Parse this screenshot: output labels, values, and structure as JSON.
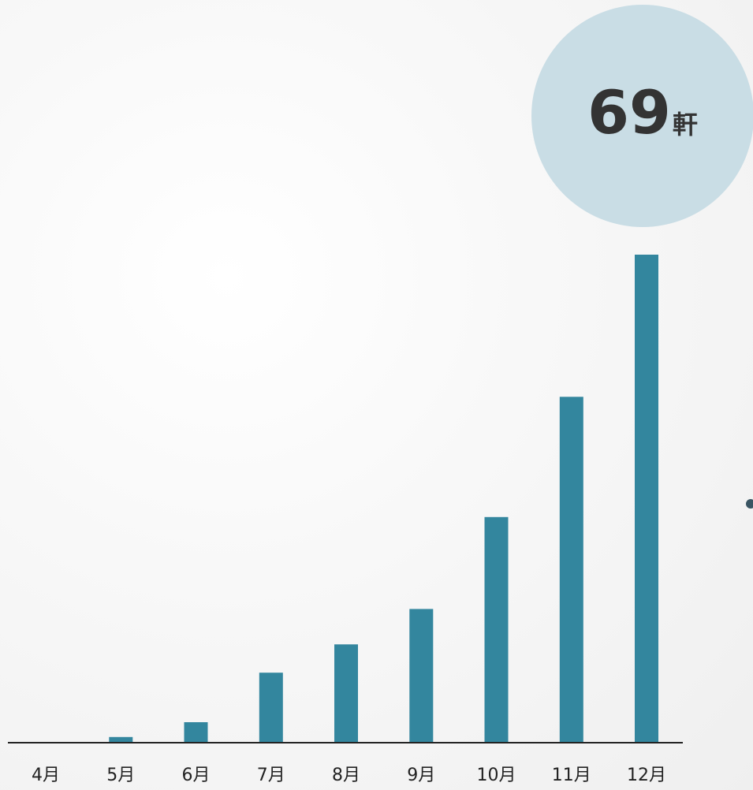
{
  "chart_data": {
    "type": "bar",
    "categories": [
      "4月",
      "5月",
      "6月",
      "7月",
      "8月",
      "9月",
      "10月",
      "11月",
      "12月"
    ],
    "values": [
      0,
      0.8,
      2.9,
      9.9,
      13.9,
      18.9,
      31.9,
      48.9,
      69
    ],
    "ylim": [
      0,
      69
    ],
    "grid": false,
    "bar_color": "#33869e",
    "axis_color": "#222222",
    "annotation": {
      "value": "69",
      "unit": "軒",
      "category": "12月",
      "bubble_color": "#c9dde5"
    }
  }
}
